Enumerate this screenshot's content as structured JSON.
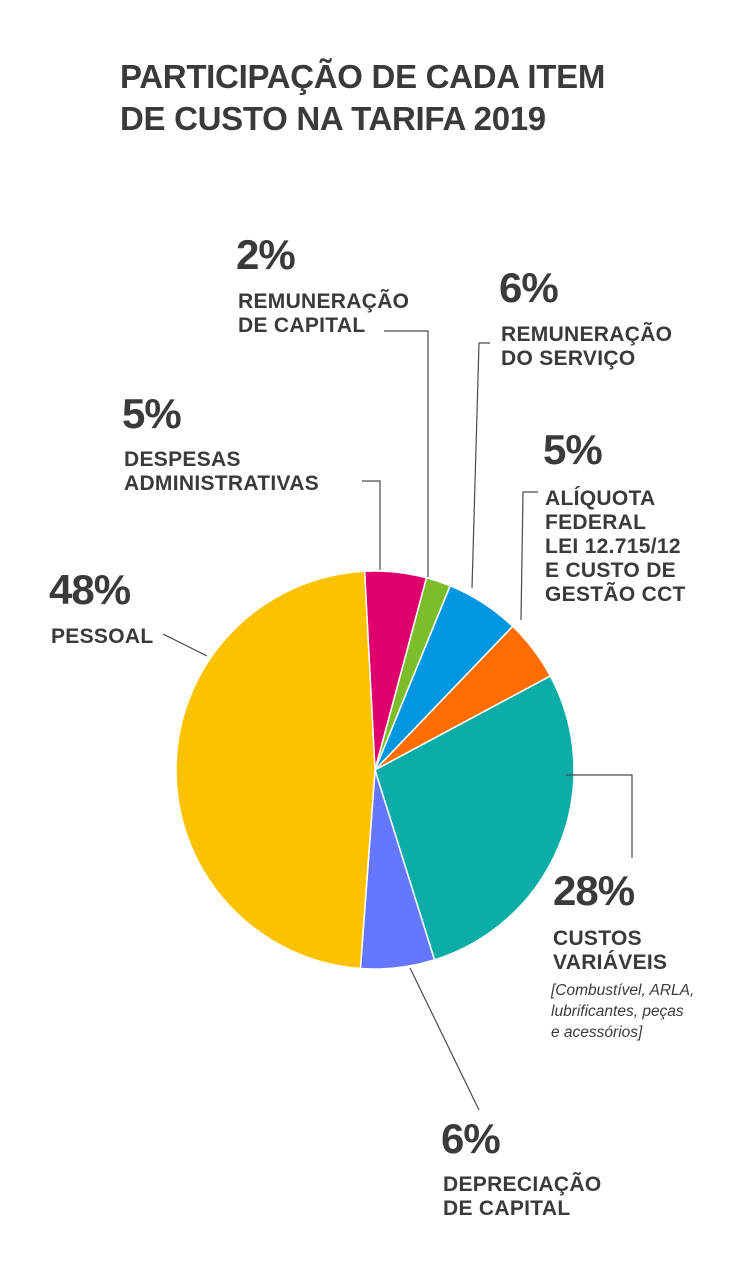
{
  "title_lines": [
    "PARTICIPAÇÃO DE CADA ITEM",
    "DE CUSTO NA TARIFA 2019"
  ],
  "chart_data": {
    "type": "pie",
    "title": "PARTICIPAÇÃO DE CADA ITEM DE CUSTO NA TARIFA 2019",
    "start_angle_deg": -3,
    "direction": "clockwise",
    "slices": [
      {
        "key": "despesas",
        "value": 5,
        "pct_label": "5%",
        "label_lines": [
          "DESPESAS",
          "ADMINISTRATIVAS"
        ],
        "color": "#df006e"
      },
      {
        "key": "capital",
        "value": 2,
        "pct_label": "2%",
        "label_lines": [
          "REMUNERAÇÃO",
          "DE CAPITAL"
        ],
        "color": "#7dbd2c"
      },
      {
        "key": "servico",
        "value": 6,
        "pct_label": "6%",
        "label_lines": [
          "REMUNERAÇÃO",
          "DO SERVIÇO"
        ],
        "color": "#0097e0"
      },
      {
        "key": "aliquota",
        "value": 5,
        "pct_label": "5%",
        "label_lines": [
          "ALÍQUOTA",
          "FEDERAL",
          "LEI 12.715/12",
          "E CUSTO DE",
          "GESTÃO CCT"
        ],
        "color": "#ff6d00"
      },
      {
        "key": "variaveis",
        "value": 28,
        "pct_label": "28%",
        "label_lines": [
          "CUSTOS",
          "VARIÁVEIS"
        ],
        "note_lines": [
          "[Combustível, ARLA,",
          "lubrificantes, peças",
          "e acessórios]"
        ],
        "color": "#0bada6"
      },
      {
        "key": "depreciacao",
        "value": 6,
        "pct_label": "6%",
        "label_lines": [
          "DEPRECIAÇÃO",
          "DE CAPITAL"
        ],
        "color": "#6677ff"
      },
      {
        "key": "pessoal",
        "value": 48,
        "pct_label": "48%",
        "label_lines": [
          "PESSOAL"
        ],
        "color": "#fcc200"
      }
    ]
  }
}
